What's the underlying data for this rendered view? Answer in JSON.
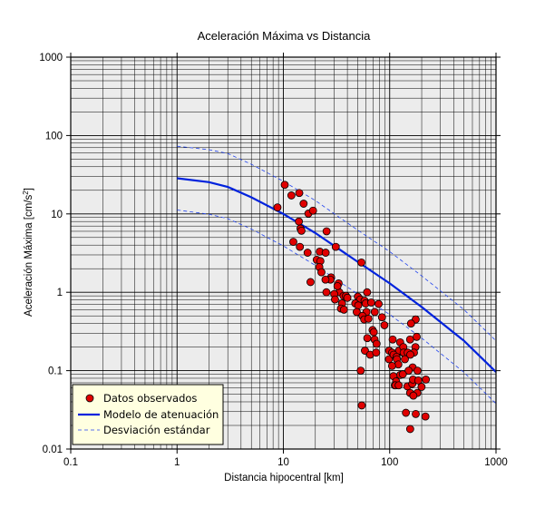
{
  "chart_data": {
    "type": "scatter",
    "title": "Aceleración Máxima vs Distancia",
    "xlabel": "Distancia hipocentral [km]",
    "ylabel_main": "Aceleración Máxima [cm/s",
    "ylabel_sup": "2",
    "ylabel_end": "]",
    "xscale": "log",
    "yscale": "log",
    "xlim": [
      0.1,
      1000
    ],
    "ylim": [
      0.01,
      1000
    ],
    "grid": true,
    "xticks": [
      "0.1",
      "1",
      "10",
      "100",
      "1000"
    ],
    "yticks": [
      "0.01",
      "0.1",
      "1",
      "10",
      "100",
      "1000"
    ],
    "legend_position": "bottom-left",
    "legend": [
      {
        "label": "Datos observados",
        "kind": "marker",
        "color": "#e00000"
      },
      {
        "label": "Modelo de atenuación",
        "kind": "solid",
        "color": "#0022dd"
      },
      {
        "label": "Desviación estándar",
        "kind": "dashed",
        "color": "#2244ee"
      }
    ],
    "series": [
      {
        "name": "Datos observados",
        "kind": "scatter",
        "color": "#e00000",
        "x": [
          10.3,
          11.9,
          14.1,
          8.8,
          15.5,
          17.2,
          19.0,
          14.0,
          14.5,
          14.8,
          25.5,
          12.4,
          14.3,
          16.9,
          20.6,
          22.3,
          22.0,
          25.0,
          31.1,
          21.8,
          54.2,
          33.1,
          22.8,
          28.1,
          27.7,
          24.9,
          33.6,
          18.0,
          32.3,
          25.4,
          30.1,
          36.8,
          38.8,
          50.2,
          52.7,
          58.0,
          61.3,
          30.6,
          35.6,
          40.0,
          47.5,
          50.6,
          59.4,
          67.0,
          78.7,
          34.8,
          37.1,
          49.0,
          60.5,
          55.4,
          72.4,
          57.6,
          63.1,
          89.2,
          175.6,
          158.8,
          69.0,
          70.8,
          61.6,
          84.7,
          106.7,
          155.6,
          179.5,
          72.1,
          75.3,
          125.5,
          58.5,
          65.5,
          98.8,
          133.4,
          98.5,
          105.4,
          122.4,
          134.3,
          74.6,
          108.8,
          174.7,
          135.3,
          116.1,
          116.8,
          147.8,
          169.2,
          120.6,
          139.0,
          164.4,
          105.3,
          156.3,
          182.7,
          53.4,
          125.6,
          150.6,
          108.4,
          132.9,
          219.0,
          146.7,
          115.0,
          111.8,
          113.2,
          121.4,
          163.1,
          165.6,
          185.8,
          199.3,
          155.6,
          181.9,
          54.6,
          167.0,
          142.1,
          216.9,
          175.9,
          155.8
        ],
        "y": [
          23.5,
          17.2,
          18.5,
          12.1,
          13.5,
          10.1,
          11.0,
          8.0,
          6.5,
          6.1,
          6.0,
          4.4,
          3.8,
          3.2,
          2.6,
          2.5,
          3.3,
          3.2,
          3.8,
          2.1,
          2.4,
          1.3,
          1.8,
          1.55,
          1.45,
          1.45,
          1.0,
          1.35,
          1.2,
          1.0,
          0.95,
          0.9,
          0.9,
          0.88,
          0.81,
          0.78,
          1.0,
          0.81,
          0.72,
          0.85,
          0.72,
          0.68,
          0.72,
          0.74,
          0.71,
          0.62,
          0.6,
          0.56,
          0.56,
          0.5,
          0.56,
          0.45,
          0.46,
          0.38,
          0.45,
          0.4,
          0.33,
          0.31,
          0.26,
          0.48,
          0.25,
          0.25,
          0.27,
          0.25,
          0.22,
          0.23,
          0.18,
          0.16,
          0.18,
          0.17,
          0.14,
          0.17,
          0.18,
          0.2,
          0.17,
          0.16,
          0.2,
          0.17,
          0.15,
          0.14,
          0.17,
          0.17,
          0.12,
          0.14,
          0.11,
          0.115,
          0.16,
          0.1,
          0.1,
          0.088,
          0.1,
          0.085,
          0.09,
          0.077,
          0.063,
          0.073,
          0.065,
          0.065,
          0.065,
          0.068,
          0.077,
          0.075,
          0.062,
          0.052,
          0.052,
          0.036,
          0.048,
          0.029,
          0.026,
          0.028,
          0.018
        ]
      },
      {
        "name": "Modelo de atenuación",
        "kind": "line",
        "color": "#0022dd",
        "x": [
          1,
          2,
          3,
          5,
          10,
          20,
          50,
          100,
          200,
          500,
          1000
        ],
        "y": [
          28.5,
          25.4,
          22.1,
          16.3,
          10.0,
          5.7,
          2.45,
          1.3,
          0.65,
          0.24,
          0.096
        ]
      },
      {
        "name": "Desviación estándar",
        "kind": "line-dashed",
        "color": "#2244ee",
        "x": [
          1,
          2,
          3,
          5,
          10,
          20,
          50,
          100,
          200,
          500,
          1000
        ],
        "y": [
          73,
          66,
          59,
          43,
          26,
          14.8,
          6.2,
          3.3,
          1.62,
          0.6,
          0.24
        ]
      },
      {
        "name": "Desviación estándar",
        "kind": "line-dashed",
        "color": "#2244ee",
        "x": [
          1,
          2,
          3,
          5,
          10,
          20,
          50,
          100,
          200,
          500,
          1000
        ],
        "y": [
          11.2,
          9.9,
          8.7,
          6.4,
          3.9,
          2.2,
          0.95,
          0.52,
          0.26,
          0.095,
          0.038
        ]
      }
    ]
  }
}
